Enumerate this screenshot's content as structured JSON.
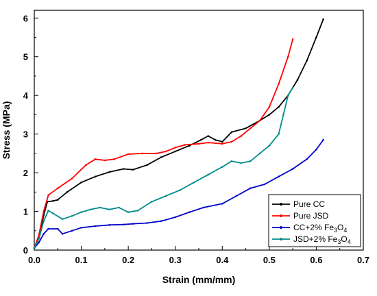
{
  "chart_data": {
    "type": "line",
    "title": "",
    "xlabel": "Strain (mm/mm)",
    "ylabel": "Stress (MPa)",
    "xlim": [
      0.0,
      0.7
    ],
    "ylim": [
      0,
      6.2
    ],
    "grid": false,
    "legend_position": "bottom-right",
    "x_ticks": [
      {
        "value": 0.0,
        "label": "0.0"
      },
      {
        "value": 0.1,
        "label": "0.1"
      },
      {
        "value": 0.2,
        "label": "0.2"
      },
      {
        "value": 0.3,
        "label": "0.3"
      },
      {
        "value": 0.4,
        "label": "0.4"
      },
      {
        "value": 0.5,
        "label": "0.5"
      },
      {
        "value": 0.6,
        "label": "0.6"
      },
      {
        "value": 0.7,
        "label": "0.7"
      }
    ],
    "y_ticks": [
      {
        "value": 0,
        "label": "0"
      },
      {
        "value": 1,
        "label": "1"
      },
      {
        "value": 2,
        "label": "2"
      },
      {
        "value": 3,
        "label": "3"
      },
      {
        "value": 4,
        "label": "4"
      },
      {
        "value": 5,
        "label": "5"
      },
      {
        "value": 6,
        "label": "6"
      }
    ],
    "series": [
      {
        "name": "Pure CC",
        "legend": {
          "main": "Pure CC"
        },
        "color": "#000000",
        "points": [
          [
            0,
            0.05
          ],
          [
            0.01,
            0.3
          ],
          [
            0.02,
            0.9
          ],
          [
            0.028,
            1.25
          ],
          [
            0.04,
            1.27
          ],
          [
            0.05,
            1.3
          ],
          [
            0.07,
            1.5
          ],
          [
            0.1,
            1.75
          ],
          [
            0.13,
            1.9
          ],
          [
            0.16,
            2.02
          ],
          [
            0.19,
            2.1
          ],
          [
            0.21,
            2.08
          ],
          [
            0.24,
            2.2
          ],
          [
            0.27,
            2.4
          ],
          [
            0.3,
            2.55
          ],
          [
            0.33,
            2.7
          ],
          [
            0.355,
            2.85
          ],
          [
            0.37,
            2.95
          ],
          [
            0.385,
            2.85
          ],
          [
            0.4,
            2.8
          ],
          [
            0.42,
            3.05
          ],
          [
            0.45,
            3.15
          ],
          [
            0.48,
            3.35
          ],
          [
            0.5,
            3.5
          ],
          [
            0.52,
            3.7
          ],
          [
            0.54,
            4.0
          ],
          [
            0.56,
            4.4
          ],
          [
            0.58,
            4.9
          ],
          [
            0.6,
            5.5
          ],
          [
            0.615,
            5.97
          ]
        ]
      },
      {
        "name": "Pure JSD",
        "legend": {
          "main": "Pure JSD"
        },
        "color": "#ff0000",
        "points": [
          [
            0,
            0.05
          ],
          [
            0.01,
            0.4
          ],
          [
            0.02,
            1.0
          ],
          [
            0.03,
            1.42
          ],
          [
            0.05,
            1.6
          ],
          [
            0.08,
            1.85
          ],
          [
            0.11,
            2.2
          ],
          [
            0.13,
            2.35
          ],
          [
            0.15,
            2.32
          ],
          [
            0.17,
            2.35
          ],
          [
            0.2,
            2.48
          ],
          [
            0.23,
            2.5
          ],
          [
            0.26,
            2.5
          ],
          [
            0.28,
            2.55
          ],
          [
            0.3,
            2.65
          ],
          [
            0.32,
            2.72
          ],
          [
            0.35,
            2.75
          ],
          [
            0.37,
            2.78
          ],
          [
            0.4,
            2.75
          ],
          [
            0.42,
            2.8
          ],
          [
            0.44,
            2.95
          ],
          [
            0.46,
            3.15
          ],
          [
            0.48,
            3.35
          ],
          [
            0.5,
            3.7
          ],
          [
            0.52,
            4.3
          ],
          [
            0.54,
            5.0
          ],
          [
            0.55,
            5.45
          ]
        ]
      },
      {
        "name": "CC+2% Fe3O4",
        "legend": {
          "main": "CC+2% Fe",
          "sub": "3",
          "tail": "O",
          "sub2": "4"
        },
        "color": "#0000cc",
        "points": [
          [
            0,
            0.05
          ],
          [
            0.01,
            0.2
          ],
          [
            0.02,
            0.42
          ],
          [
            0.03,
            0.55
          ],
          [
            0.05,
            0.55
          ],
          [
            0.06,
            0.42
          ],
          [
            0.08,
            0.5
          ],
          [
            0.1,
            0.58
          ],
          [
            0.13,
            0.62
          ],
          [
            0.16,
            0.65
          ],
          [
            0.19,
            0.66
          ],
          [
            0.21,
            0.68
          ],
          [
            0.24,
            0.7
          ],
          [
            0.27,
            0.75
          ],
          [
            0.3,
            0.85
          ],
          [
            0.33,
            0.98
          ],
          [
            0.36,
            1.1
          ],
          [
            0.4,
            1.2
          ],
          [
            0.43,
            1.4
          ],
          [
            0.46,
            1.6
          ],
          [
            0.49,
            1.7
          ],
          [
            0.52,
            1.9
          ],
          [
            0.55,
            2.1
          ],
          [
            0.58,
            2.35
          ],
          [
            0.6,
            2.6
          ],
          [
            0.615,
            2.85
          ]
        ]
      },
      {
        "name": "JSD+2% Fe3O4",
        "legend": {
          "main": "JSD+2% Fe",
          "sub": "3",
          "tail": "O",
          "sub2": "4"
        },
        "color": "#008b8b",
        "points": [
          [
            0,
            0.05
          ],
          [
            0.01,
            0.3
          ],
          [
            0.02,
            0.75
          ],
          [
            0.03,
            1.02
          ],
          [
            0.04,
            0.95
          ],
          [
            0.06,
            0.8
          ],
          [
            0.08,
            0.88
          ],
          [
            0.1,
            0.98
          ],
          [
            0.12,
            1.05
          ],
          [
            0.14,
            1.1
          ],
          [
            0.16,
            1.05
          ],
          [
            0.18,
            1.1
          ],
          [
            0.2,
            0.98
          ],
          [
            0.22,
            1.02
          ],
          [
            0.25,
            1.25
          ],
          [
            0.28,
            1.4
          ],
          [
            0.31,
            1.55
          ],
          [
            0.34,
            1.75
          ],
          [
            0.37,
            1.95
          ],
          [
            0.4,
            2.15
          ],
          [
            0.42,
            2.3
          ],
          [
            0.44,
            2.25
          ],
          [
            0.46,
            2.3
          ],
          [
            0.48,
            2.5
          ],
          [
            0.5,
            2.7
          ],
          [
            0.52,
            3.0
          ],
          [
            0.53,
            3.5
          ],
          [
            0.54,
            4.0
          ],
          [
            0.55,
            4.2
          ]
        ]
      }
    ]
  }
}
